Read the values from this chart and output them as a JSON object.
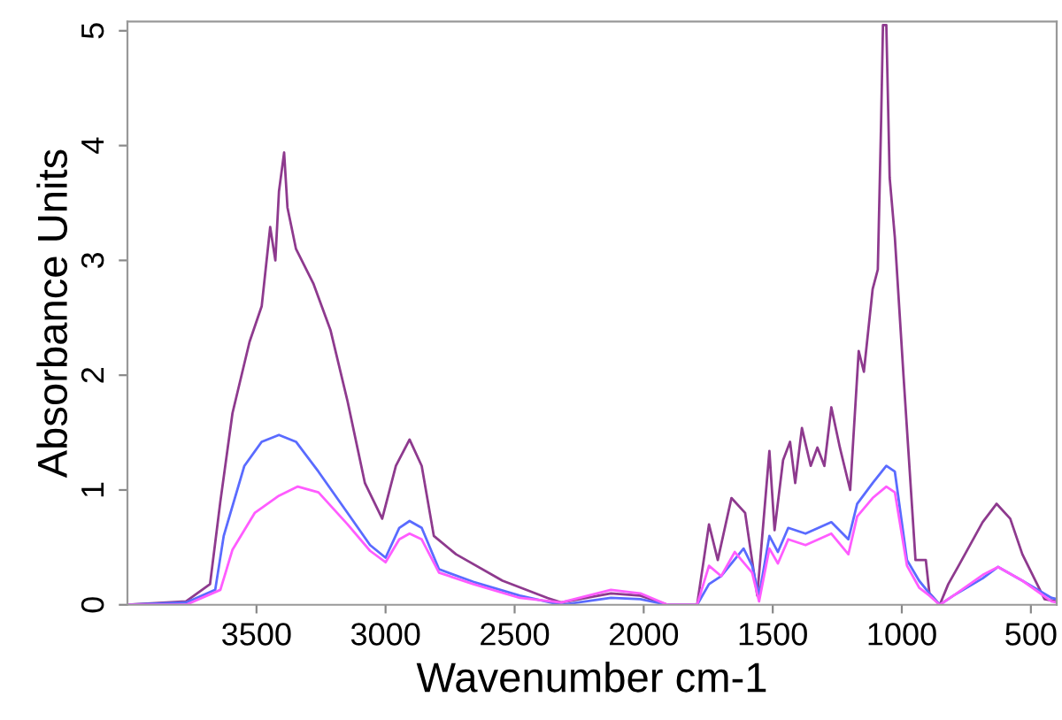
{
  "chart_data": {
    "type": "line",
    "xlabel": "Wavenumber cm-1",
    "ylabel": "Absorbance Units",
    "xlim": [
      4000,
      400
    ],
    "xticks": [
      3500,
      3000,
      2500,
      2000,
      1500,
      1000,
      500
    ],
    "ylim": [
      0,
      5.08
    ],
    "yticks": [
      0,
      1,
      2,
      3,
      4,
      5
    ],
    "grid": false,
    "marker": "none",
    "line_style": "solid",
    "series": [
      {
        "color": "#8e3a8e",
        "x": [
          4000,
          3773,
          3680,
          3640,
          3593,
          3527,
          3480,
          3447,
          3427,
          3413,
          3393,
          3380,
          3347,
          3280,
          3213,
          3147,
          3080,
          3013,
          2960,
          2907,
          2860,
          2813,
          2727,
          2547,
          2373,
          2320,
          2127,
          2013,
          1907,
          1793,
          1747,
          1713,
          1660,
          1607,
          1560,
          1513,
          1493,
          1460,
          1433,
          1413,
          1387,
          1353,
          1327,
          1300,
          1273,
          1240,
          1200,
          1167,
          1147,
          1113,
          1093,
          1080,
          1073,
          1060,
          1047,
          1027,
          993,
          947,
          907,
          893,
          853,
          820,
          780,
          687,
          633,
          580,
          533,
          447,
          400
        ],
        "values": [
          0,
          0.03,
          0.18,
          0.9,
          1.67,
          2.29,
          2.6,
          3.29,
          3.0,
          3.6,
          3.94,
          3.46,
          3.1,
          2.8,
          2.39,
          1.77,
          1.06,
          0.75,
          1.21,
          1.44,
          1.21,
          0.6,
          0.44,
          0.21,
          0.06,
          0.02,
          0.1,
          0.08,
          0,
          0,
          0.7,
          0.39,
          0.93,
          0.8,
          0.08,
          1.34,
          0.65,
          1.26,
          1.42,
          1.06,
          1.54,
          1.21,
          1.37,
          1.21,
          1.72,
          1.37,
          1.0,
          2.21,
          2.03,
          2.75,
          2.92,
          4.23,
          5.05,
          5.05,
          3.72,
          3.2,
          1.98,
          0.39,
          0.39,
          0.1,
          0,
          0.18,
          0.34,
          0.72,
          0.88,
          0.75,
          0.44,
          0.05,
          0.03
        ]
      },
      {
        "color": "#5a6bff",
        "x": [
          4000,
          3773,
          3660,
          3627,
          3547,
          3480,
          3413,
          3347,
          3260,
          3147,
          3060,
          3000,
          2947,
          2907,
          2860,
          2793,
          2660,
          2480,
          2320,
          2127,
          2013,
          1907,
          1793,
          1747,
          1700,
          1613,
          1580,
          1553,
          1513,
          1480,
          1440,
          1373,
          1273,
          1207,
          1173,
          1113,
          1060,
          1027,
          980,
          933,
          893,
          853,
          800,
          687,
          627,
          533,
          420,
          400
        ],
        "values": [
          0,
          0.02,
          0.13,
          0.6,
          1.21,
          1.42,
          1.48,
          1.42,
          1.16,
          0.8,
          0.52,
          0.41,
          0.67,
          0.73,
          0.67,
          0.31,
          0.2,
          0.08,
          0,
          0.06,
          0.05,
          0,
          0,
          0.18,
          0.25,
          0.49,
          0.34,
          0.08,
          0.6,
          0.46,
          0.67,
          0.62,
          0.72,
          0.57,
          0.88,
          1.06,
          1.21,
          1.16,
          0.39,
          0.21,
          0.1,
          0,
          0.08,
          0.23,
          0.33,
          0.21,
          0.06,
          0.05
        ]
      },
      {
        "color": "#ff5cff",
        "x": [
          4000,
          3773,
          3640,
          3593,
          3507,
          3413,
          3340,
          3260,
          3147,
          3060,
          3000,
          2947,
          2907,
          2860,
          2793,
          2660,
          2480,
          2320,
          2127,
          2013,
          1907,
          1793,
          1747,
          1700,
          1647,
          1580,
          1553,
          1513,
          1480,
          1440,
          1373,
          1273,
          1207,
          1173,
          1113,
          1060,
          1027,
          980,
          933,
          893,
          853,
          800,
          687,
          627,
          533,
          420,
          400
        ],
        "values": [
          0,
          0,
          0.13,
          0.48,
          0.8,
          0.95,
          1.03,
          0.98,
          0.7,
          0.47,
          0.37,
          0.57,
          0.62,
          0.57,
          0.28,
          0.18,
          0.06,
          0.02,
          0.13,
          0.1,
          0,
          0,
          0.34,
          0.25,
          0.46,
          0.28,
          0.03,
          0.49,
          0.36,
          0.57,
          0.52,
          0.62,
          0.44,
          0.77,
          0.93,
          1.03,
          0.98,
          0.34,
          0.15,
          0.08,
          0,
          0.08,
          0.26,
          0.33,
          0.21,
          0.03,
          0.02
        ]
      }
    ]
  }
}
